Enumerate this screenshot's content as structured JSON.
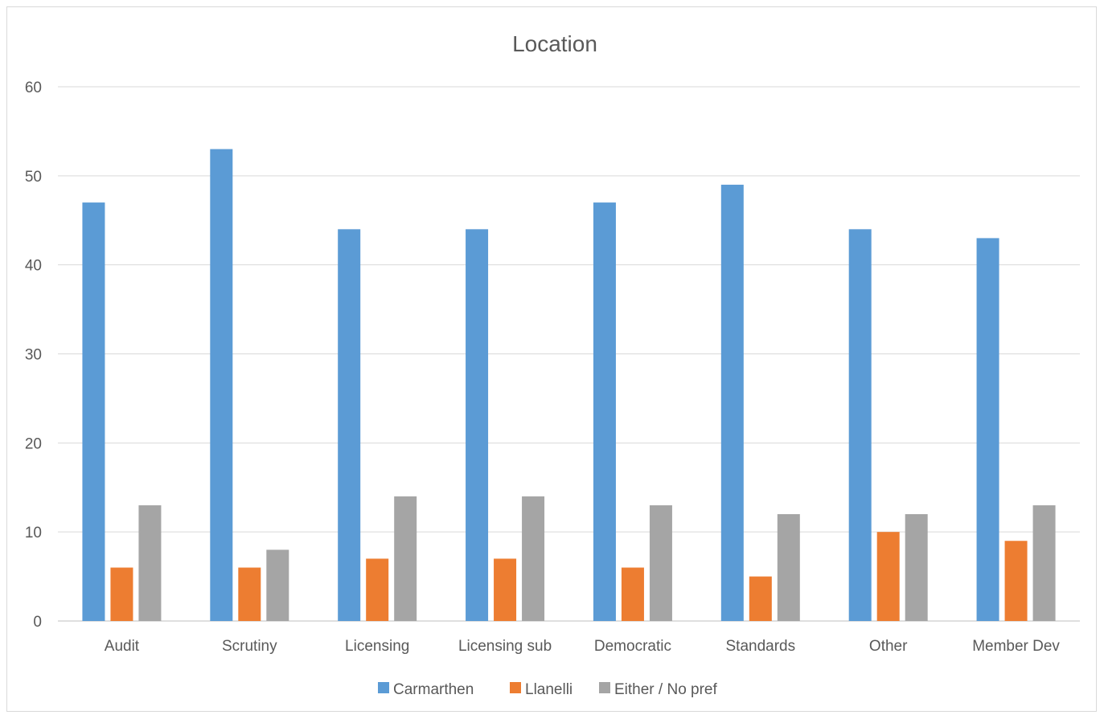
{
  "chart_data": {
    "type": "bar",
    "title": "Location",
    "categories": [
      "Audit",
      "Scrutiny",
      "Licensing",
      "Licensing sub",
      "Democratic",
      "Standards",
      "Other",
      "Member Dev"
    ],
    "series": [
      {
        "name": "Carmarthen",
        "color": "#5b9bd5",
        "values": [
          47,
          53,
          44,
          44,
          47,
          49,
          44,
          43
        ]
      },
      {
        "name": "Llanelli",
        "color": "#ed7d31",
        "values": [
          6,
          6,
          7,
          7,
          6,
          5,
          10,
          9
        ]
      },
      {
        "name": "Either / No pref",
        "color": "#a5a5a5",
        "values": [
          13,
          8,
          14,
          14,
          13,
          12,
          12,
          13
        ]
      }
    ],
    "ylim": [
      0,
      60
    ],
    "yticks": [
      0,
      10,
      20,
      30,
      40,
      50,
      60
    ],
    "grid": true,
    "legend_position": "bottom"
  }
}
